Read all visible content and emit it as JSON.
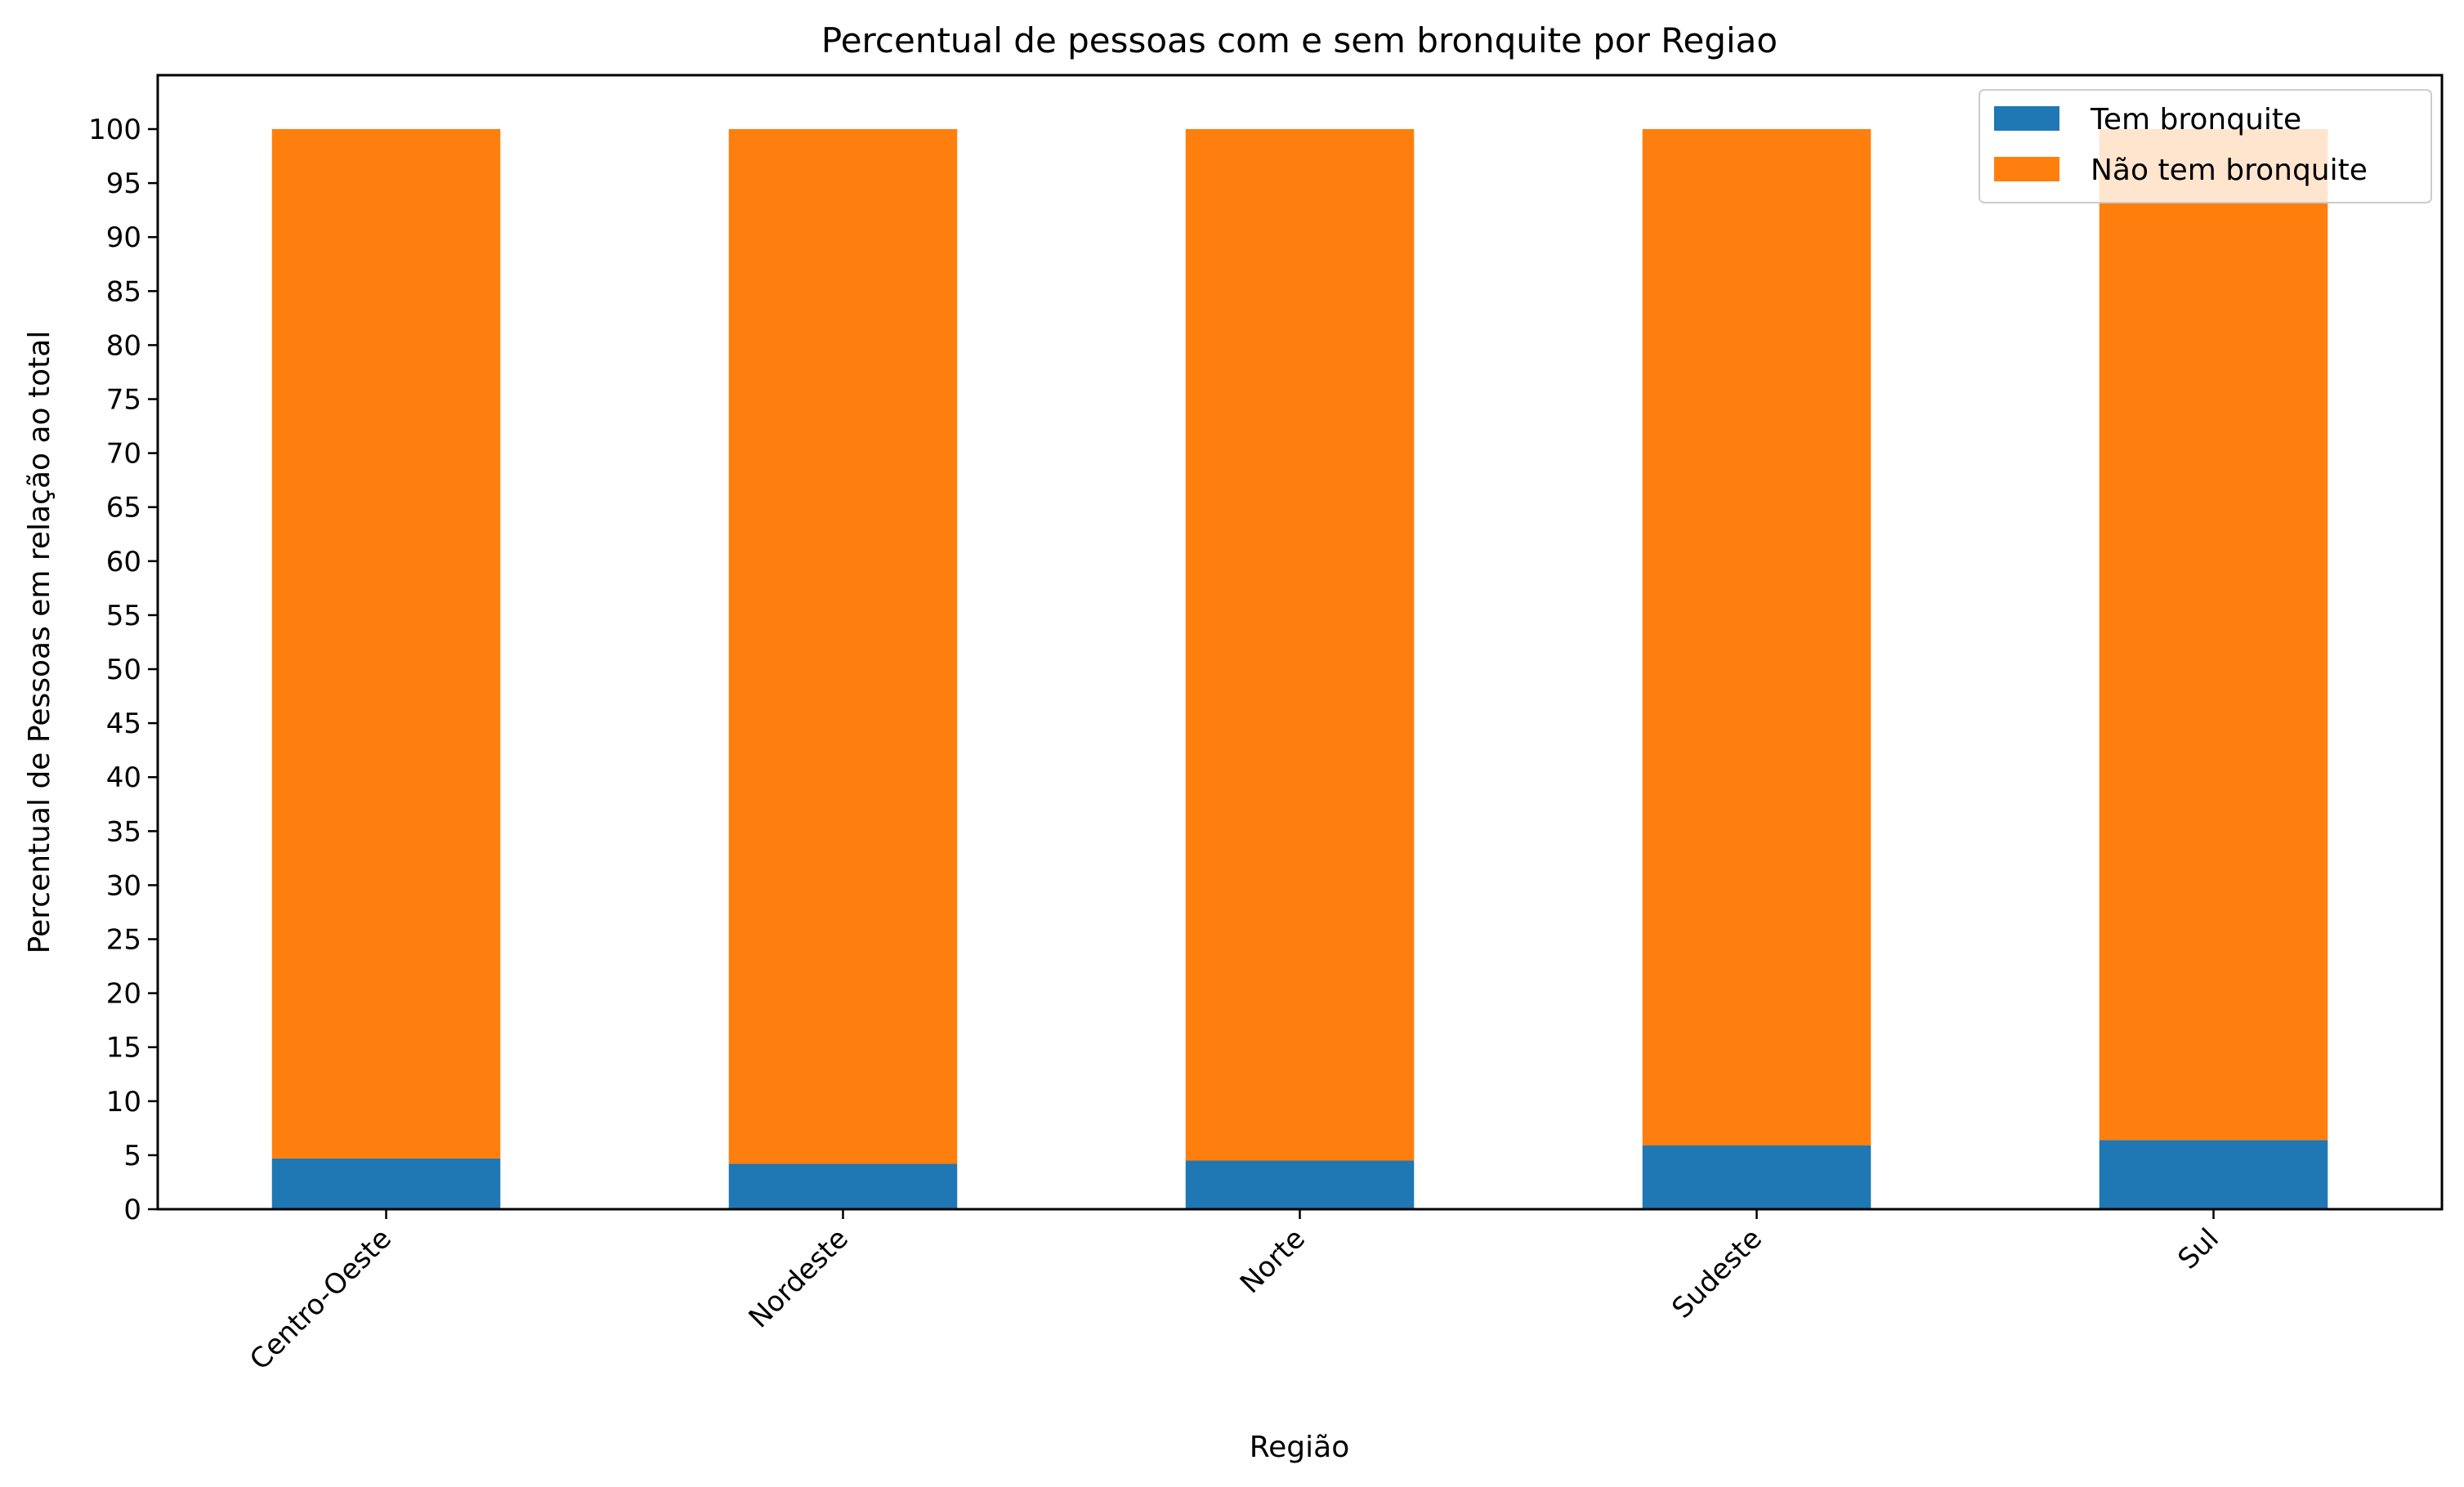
{
  "chart_data": {
    "type": "bar",
    "stacked": true,
    "title": "Percentual de pessoas com e sem bronquite por Regiao",
    "xlabel": "Região",
    "ylabel": "Percentual de Pessoas em relação ao total",
    "categories": [
      "Centro-Oeste",
      "Nordeste",
      "Norte",
      "Sudeste",
      "Sul"
    ],
    "series": [
      {
        "name": "Tem bronquite",
        "color": "#1f77b4",
        "values": [
          4.7,
          4.2,
          4.5,
          5.9,
          6.4
        ]
      },
      {
        "name": "Não tem bronquite",
        "color": "#ff7f0e",
        "values": [
          95.3,
          95.8,
          95.5,
          94.1,
          93.6
        ]
      }
    ],
    "ylim": [
      0,
      105
    ],
    "yticks": [
      0,
      5,
      10,
      15,
      20,
      25,
      30,
      35,
      40,
      45,
      50,
      55,
      60,
      65,
      70,
      75,
      80,
      85,
      90,
      95,
      100
    ],
    "grid": false,
    "legend_position": "top-right"
  }
}
